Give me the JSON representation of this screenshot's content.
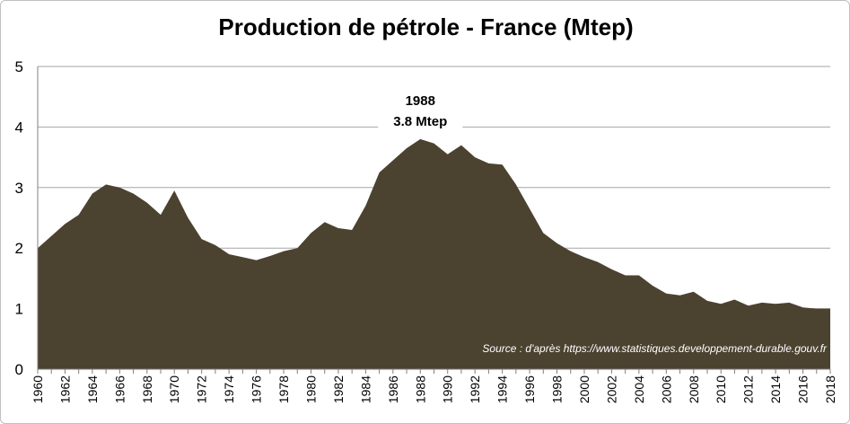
{
  "chart_data": {
    "type": "area",
    "title": "Production de pétrole - France (Mtep)",
    "xlabel": "",
    "ylabel": "",
    "ylim": [
      0,
      5
    ],
    "yticks": [
      "0",
      "1",
      "2",
      "3",
      "4",
      "5"
    ],
    "xlim": [
      1960,
      2018
    ],
    "xticks": [
      "1960",
      "1962",
      "1964",
      "1966",
      "1968",
      "1970",
      "1972",
      "1974",
      "1976",
      "1978",
      "1980",
      "1982",
      "1984",
      "1986",
      "1988",
      "1990",
      "1992",
      "1994",
      "1996",
      "1998",
      "2000",
      "2002",
      "2004",
      "2006",
      "2008",
      "2010",
      "2012",
      "2014",
      "2016",
      "2018"
    ],
    "grid": true,
    "fill_color": "#4b4230",
    "x": [
      1960,
      1961,
      1962,
      1963,
      1964,
      1965,
      1966,
      1967,
      1968,
      1969,
      1970,
      1971,
      1972,
      1973,
      1974,
      1975,
      1976,
      1977,
      1978,
      1979,
      1980,
      1981,
      1982,
      1983,
      1984,
      1985,
      1986,
      1987,
      1988,
      1989,
      1990,
      1991,
      1992,
      1993,
      1994,
      1995,
      1996,
      1997,
      1998,
      1999,
      2000,
      2001,
      2002,
      2003,
      2004,
      2005,
      2006,
      2007,
      2008,
      2009,
      2010,
      2011,
      2012,
      2013,
      2014,
      2015,
      2016,
      2017,
      2018
    ],
    "values": [
      2.0,
      2.2,
      2.4,
      2.55,
      2.9,
      3.05,
      3.0,
      2.9,
      2.75,
      2.55,
      2.95,
      2.5,
      2.15,
      2.05,
      1.9,
      1.85,
      1.8,
      1.87,
      1.95,
      2.0,
      2.25,
      2.43,
      2.33,
      2.3,
      2.7,
      3.25,
      3.45,
      3.65,
      3.8,
      3.73,
      3.55,
      3.7,
      3.5,
      3.4,
      3.38,
      3.05,
      2.65,
      2.25,
      2.08,
      1.95,
      1.85,
      1.77,
      1.65,
      1.55,
      1.55,
      1.38,
      1.25,
      1.22,
      1.28,
      1.13,
      1.08,
      1.15,
      1.05,
      1.1,
      1.08,
      1.1,
      1.02,
      1.0,
      1.0
    ],
    "annotation": {
      "year_label": "1988",
      "value_label": "3.8 Mtep",
      "x": 1988,
      "y": 3.8
    },
    "source_text": "Source : d'après https://www.statistiques.developpement-durable.gouv.fr"
  }
}
